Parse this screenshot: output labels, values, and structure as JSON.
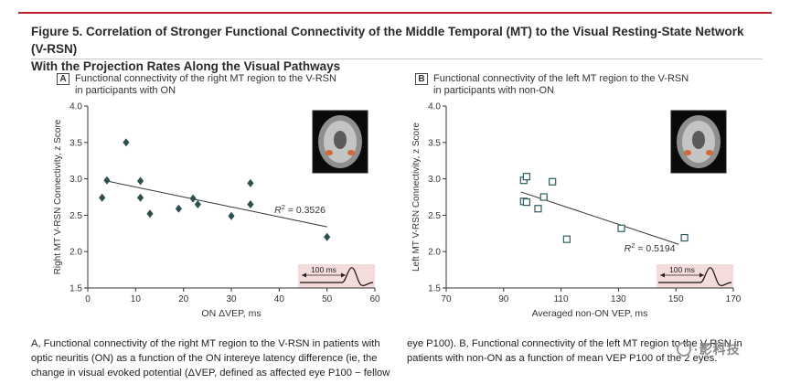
{
  "figure": {
    "title_line1": "Figure 5. Correlation of Stronger Functional Connectivity of the Middle Temporal (MT) to the Visual Resting-State Network (V-RSN)",
    "title_line2": "With the Projection Rates Along the Visual Pathways"
  },
  "colors": {
    "accent": "#b8202a",
    "marker": "#2f4f4f",
    "open_marker": "#2e5d60",
    "inset_bg": "#f5dcdc"
  },
  "chart_data": [
    {
      "panel": "A",
      "type": "scatter",
      "title_line1": "Functional connectivity of the right MT region to the V-RSN",
      "title_line2": "in participants with ON",
      "xlabel": "ON ΔVEP, ms",
      "ylabel": "Right MT V-RSN Connectivity, z Score",
      "xlim": [
        0,
        60
      ],
      "ylim": [
        1.5,
        4.0
      ],
      "xticks": [
        0,
        10,
        20,
        30,
        40,
        50,
        60
      ],
      "yticks": [
        1.5,
        2.0,
        2.5,
        3.0,
        3.5,
        4.0
      ],
      "marker": "filled-diamond",
      "points": [
        {
          "x": 3,
          "y": 2.74
        },
        {
          "x": 4,
          "y": 2.98
        },
        {
          "x": 8,
          "y": 3.5
        },
        {
          "x": 11,
          "y": 2.97
        },
        {
          "x": 11,
          "y": 2.74
        },
        {
          "x": 13,
          "y": 2.52
        },
        {
          "x": 19,
          "y": 2.59
        },
        {
          "x": 22,
          "y": 2.73
        },
        {
          "x": 23,
          "y": 2.65
        },
        {
          "x": 30,
          "y": 2.49
        },
        {
          "x": 34,
          "y": 2.94
        },
        {
          "x": 34,
          "y": 2.65
        },
        {
          "x": 50,
          "y": 2.2
        }
      ],
      "fit": {
        "x": [
          4,
          50
        ],
        "y": [
          2.97,
          2.34
        ]
      },
      "annotation": {
        "r_label": "R",
        "r_exp": "2",
        "r_value": " = 0.3526",
        "x": 39,
        "y": 2.53
      },
      "inset": {
        "label": "100 ms",
        "icon": "vep-waveform-icon"
      },
      "brain": {
        "icon": "brain-mri-icon"
      }
    },
    {
      "panel": "B",
      "type": "scatter",
      "title_line1": "Functional connectivity of the left MT region to the V-RSN",
      "title_line2": "in participants with non-ON",
      "xlabel": "Averaged non-ON VEP, ms",
      "ylabel": "Left MT V-RSN Connectivity, z Score",
      "xlim": [
        70,
        170
      ],
      "ylim": [
        1.5,
        4.0
      ],
      "xticks": [
        70,
        90,
        110,
        130,
        150,
        170
      ],
      "yticks": [
        1.5,
        2.0,
        2.5,
        3.0,
        3.5,
        4.0
      ],
      "marker": "open-square",
      "points": [
        {
          "x": 97,
          "y": 2.98
        },
        {
          "x": 98,
          "y": 3.03
        },
        {
          "x": 97,
          "y": 2.69
        },
        {
          "x": 98,
          "y": 2.68
        },
        {
          "x": 102,
          "y": 2.59
        },
        {
          "x": 104,
          "y": 2.75
        },
        {
          "x": 107,
          "y": 2.96
        },
        {
          "x": 112,
          "y": 2.17
        },
        {
          "x": 131,
          "y": 2.32
        },
        {
          "x": 153,
          "y": 2.19
        }
      ],
      "fit": {
        "x": [
          96,
          151
        ],
        "y": [
          2.82,
          2.1
        ]
      },
      "annotation": {
        "r_label": "R",
        "r_exp": "2",
        "r_value": " = 0.5194",
        "x": 132,
        "y": 2.0
      },
      "inset": {
        "label": "100 ms",
        "icon": "vep-waveform-icon"
      },
      "brain": {
        "icon": "brain-mri-icon"
      }
    }
  ],
  "captions": {
    "a": "A, Functional connectivity of the right MT region to the V-RSN in patients with optic neuritis (ON) as a function of the ON intereye latency difference (ie, the change in visual evoked potential (ΔVEP, defined as affected eye P100 − fellow",
    "b": "eye P100). B, Functional connectivity of the left MT region to the V-RSN in patients with non-ON as a function of mean VEP P100 of the 2 eyes."
  },
  "watermark": "·影科技"
}
